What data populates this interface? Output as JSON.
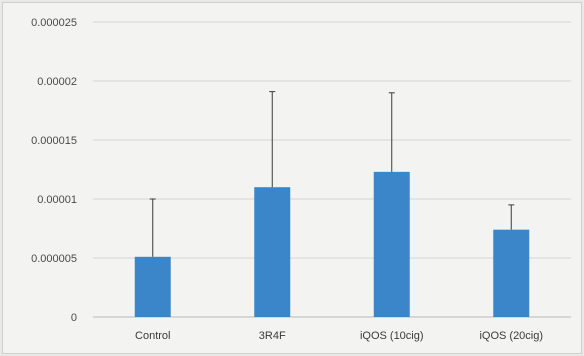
{
  "chart_data": {
    "type": "bar",
    "title": "",
    "xlabel": "",
    "ylabel": "",
    "categories": [
      "Control",
      "3R4F",
      "iQOS (10cig)",
      "iQOS (20cig)"
    ],
    "values": [
      5.1e-06,
      1.1e-05,
      1.23e-05,
      7.4e-06
    ],
    "error_upper": [
      4.9e-06,
      8.1e-06,
      6.7e-06,
      2.1e-06
    ],
    "ylim": [
      0,
      2.5e-05
    ],
    "yticks": [
      0,
      5e-06,
      1e-05,
      1.5e-05,
      2e-05,
      2.5e-05
    ],
    "ytick_labels": [
      "0",
      "0.000005",
      "0.00001",
      "0.000015",
      "0.00002",
      "0.000025"
    ],
    "grid": true,
    "legend": "none",
    "colors": {
      "bar": "#3b86c9",
      "grid": "#d6d6d3",
      "axis": "#b9b9b5",
      "error": "#3a3a3a"
    }
  }
}
